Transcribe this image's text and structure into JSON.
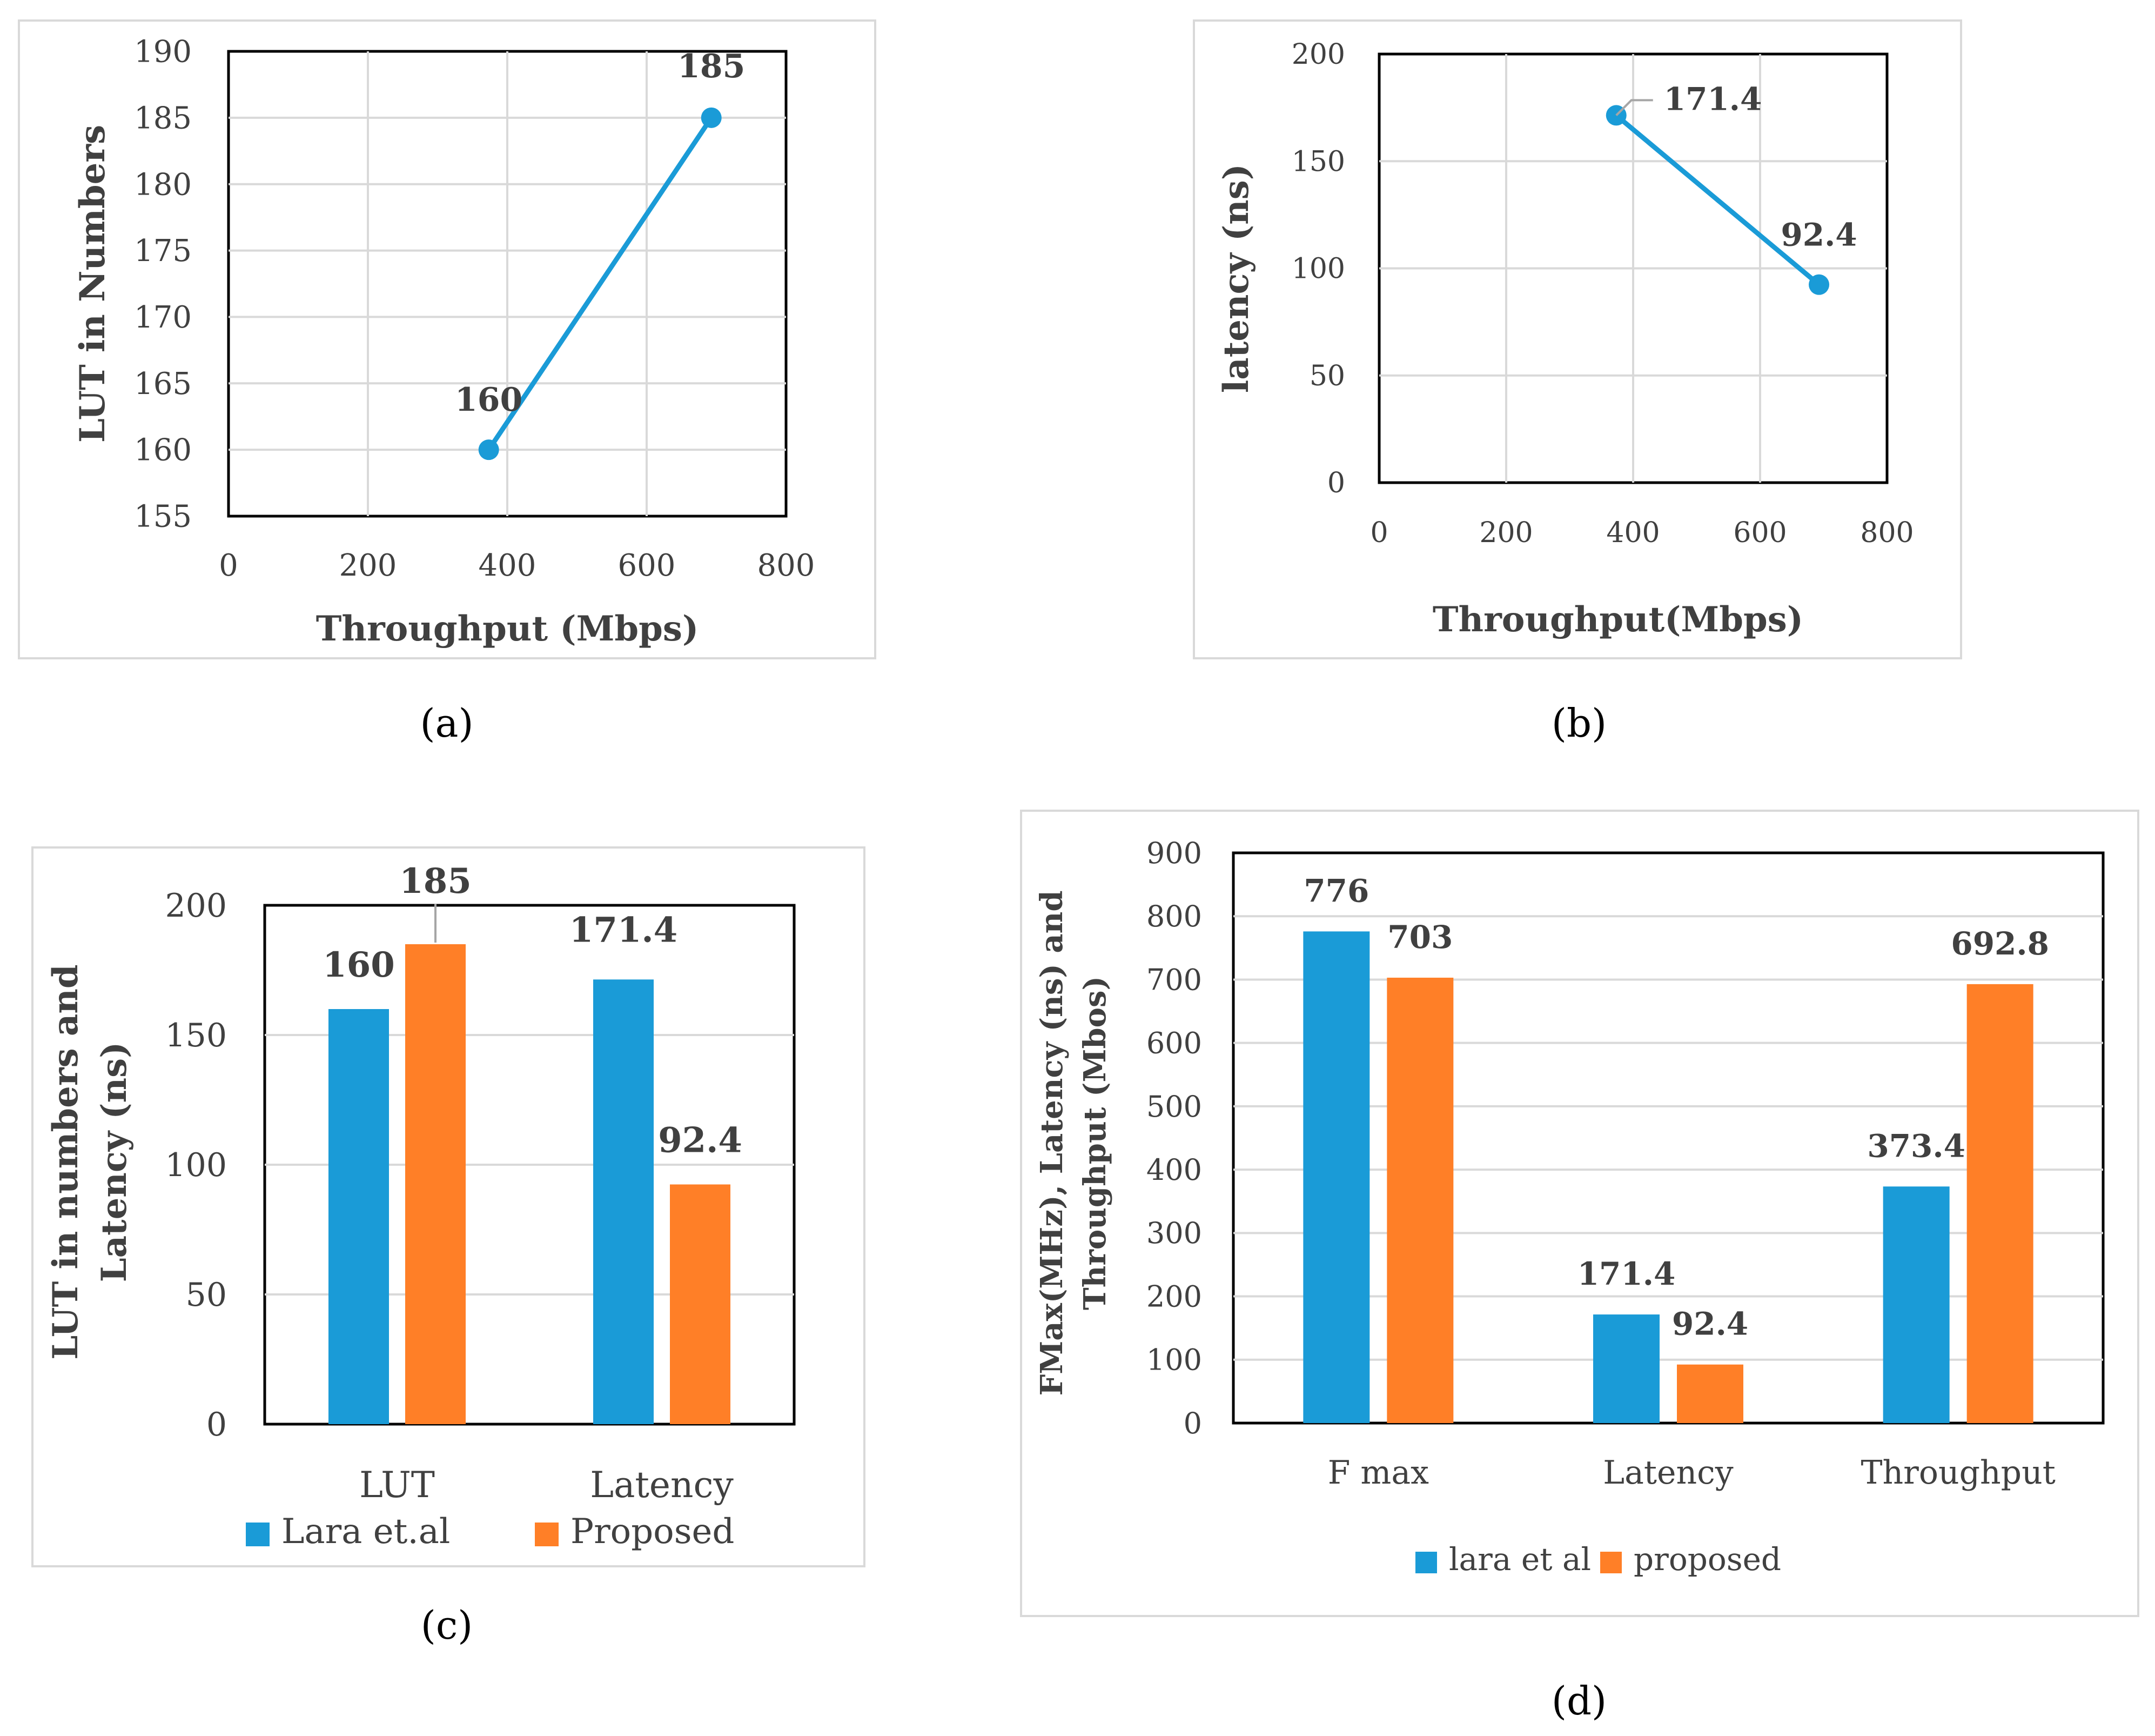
{
  "colors": {
    "blue": "#1A9BD7",
    "orange": "#FF7F27",
    "grid": "#D9D9D9",
    "axis": "#000000",
    "frame": "#D9D9D9",
    "text": "#404040"
  },
  "chart_data": [
    {
      "id": "a",
      "type": "line",
      "caption": "(a)",
      "xlabel": "Throughput (Mbps)",
      "ylabel": "LUT in Numbers",
      "xlim": [
        0,
        800
      ],
      "ylim": [
        155,
        190
      ],
      "xticks": [
        "0",
        "200",
        "400",
        "600",
        "800"
      ],
      "yticks": [
        "155",
        "160",
        "165",
        "170",
        "175",
        "180",
        "185",
        "190"
      ],
      "series": [
        {
          "name": "LUT",
          "x": [
            373.4,
            692.8
          ],
          "y": [
            160,
            185
          ],
          "labels": [
            "160",
            "185"
          ]
        }
      ]
    },
    {
      "id": "b",
      "type": "line",
      "caption": "(b)",
      "xlabel": "Throughput(Mbps)",
      "ylabel": "latency (ns)",
      "xlim": [
        0,
        800
      ],
      "ylim": [
        0,
        200
      ],
      "xticks": [
        "0",
        "200",
        "400",
        "600",
        "800"
      ],
      "yticks": [
        "0",
        "50",
        "100",
        "150",
        "200"
      ],
      "series": [
        {
          "name": "latency",
          "x": [
            373.4,
            692.8
          ],
          "y": [
            171.4,
            92.4
          ],
          "labels": [
            "171.4",
            "92.4"
          ]
        }
      ]
    },
    {
      "id": "c",
      "type": "bar",
      "caption": "(c)",
      "ylabel_lines": [
        "LUT in numbers and",
        "Latency (ns)"
      ],
      "ylim": [
        0,
        200
      ],
      "yticks": [
        "0",
        "50",
        "100",
        "150",
        "200"
      ],
      "categories": [
        "LUT",
        "Latency"
      ],
      "series": [
        {
          "name": "Lara et.al",
          "values": [
            160,
            171.4
          ],
          "labels": [
            "160",
            "171.4"
          ]
        },
        {
          "name": "Proposed",
          "values": [
            185,
            92.4
          ],
          "labels": [
            "185",
            "92.4"
          ]
        }
      ],
      "legend": "bottom"
    },
    {
      "id": "d",
      "type": "bar",
      "caption": "(d)",
      "ylabel_lines": [
        "FMax(MHz),  Latency (ns) and",
        "Throughput (Mbos)"
      ],
      "ylim": [
        0,
        900
      ],
      "yticks": [
        "0",
        "100",
        "200",
        "300",
        "400",
        "500",
        "600",
        "700",
        "800",
        "900"
      ],
      "categories": [
        "F max",
        "Latency",
        "Throughput"
      ],
      "series": [
        {
          "name": "lara et al",
          "values": [
            776,
            171.4,
            373.4
          ],
          "labels": [
            "776",
            "171.4",
            "373.4"
          ]
        },
        {
          "name": "proposed",
          "values": [
            703,
            92.4,
            692.8
          ],
          "labels": [
            "703",
            "92.4",
            "692.8"
          ]
        }
      ],
      "legend": "bottom"
    }
  ]
}
